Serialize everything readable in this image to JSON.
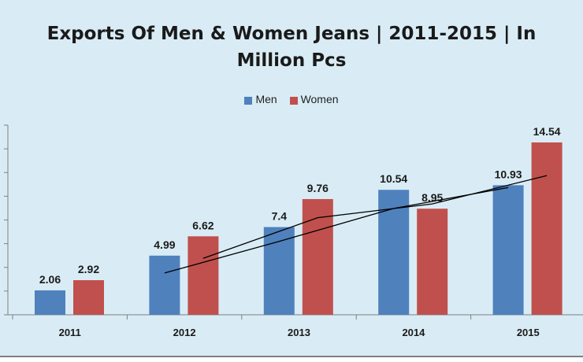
{
  "chart_data": {
    "type": "bar",
    "title_lines": [
      "Exports Of Men & Women Jeans | 2011-2015 | In",
      "Million Pcs"
    ],
    "categories": [
      "2011",
      "2012",
      "2013",
      "2014",
      "2015"
    ],
    "series": [
      {
        "name": "Men",
        "values": [
          2.06,
          4.99,
          7.4,
          10.54,
          10.93
        ],
        "value_labels": [
          "2.06",
          "4.99",
          "7.4",
          "10.54",
          "10.93"
        ],
        "color": "#4f81bd"
      },
      {
        "name": "Women",
        "values": [
          2.92,
          6.62,
          9.76,
          8.95,
          14.54
        ],
        "value_labels": [
          "2.92",
          "6.62",
          "9.76",
          "8.95",
          "14.54"
        ],
        "color": "#c0504d"
      }
    ],
    "trendline_color": "#000000",
    "legend_position": "top",
    "ylim": [
      0,
      16
    ],
    "y_ticks": [
      0,
      2,
      4,
      6,
      8,
      10,
      12,
      14,
      16
    ],
    "grid": false
  }
}
